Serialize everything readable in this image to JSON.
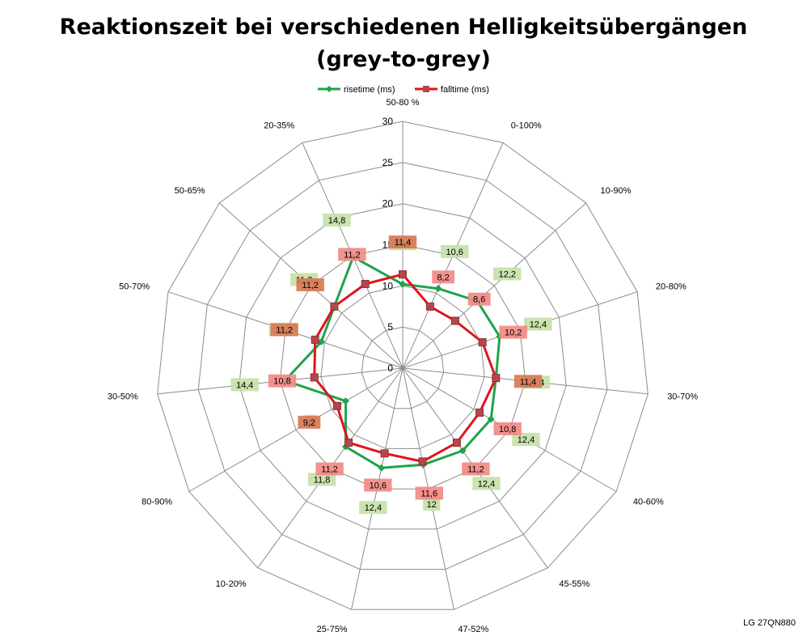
{
  "chart_data": {
    "type": "radar",
    "title_line1": "Reaktionszeit bei verschiedenen Helligkeitsübergängen",
    "title_line2": "(grey-to-grey)",
    "categories": [
      "50-80 %",
      "0-100%",
      "10-90%",
      "20-80%",
      "30-70%",
      "40-60%",
      "45-55%",
      "47-52%",
      "25-75%",
      "10-20%",
      "80-90%",
      "30-50%",
      "50-70%",
      "50-65%",
      "20-35%"
    ],
    "radial_axis": {
      "min": 0,
      "max": 30,
      "step": 5,
      "ticks": [
        "0",
        "5",
        "10",
        "15",
        "20",
        "25",
        "30"
      ]
    },
    "legend_position": "top",
    "series": [
      {
        "name": "risetime (ms)",
        "color": "#1fa34a",
        "marker": "diamond",
        "label_bg": "#c6e1a8",
        "values": [
          10.2,
          10.6,
          12.2,
          12.4,
          11.4,
          12.4,
          12.4,
          12,
          12.4,
          11.8,
          8,
          14.4,
          10.4,
          11.2,
          14.8
        ],
        "labels": [
          "10,2",
          "10,6",
          "12,2",
          "12,4",
          "11,4",
          "12,4",
          "12,4",
          "12",
          "12,4",
          "11,8",
          "8",
          "14,4",
          "10,4",
          "11,2",
          "14,8"
        ]
      },
      {
        "name": "falltime (ms)",
        "color": "#e0141c",
        "marker": "square",
        "label_bg": "#f28a85",
        "values": [
          11.4,
          8.2,
          8.6,
          10.2,
          11.4,
          10.8,
          11.2,
          11.6,
          10.6,
          11.2,
          9.2,
          10.8,
          11.2,
          11.2,
          11.2
        ],
        "labels": [
          "11,4",
          "8,2",
          "8,6",
          "10,2",
          "11,4",
          "10,8",
          "11,2",
          "11,6",
          "10,6",
          "11,2",
          "9,2",
          "10,8",
          "11,2",
          "11,2",
          "11,2"
        ]
      }
    ]
  },
  "footer": {
    "model": "LG 27QN880"
  },
  "colors": {
    "grid": "#8c8c8c",
    "label_text": "#000000",
    "overlap_bg": "#d87a55"
  }
}
